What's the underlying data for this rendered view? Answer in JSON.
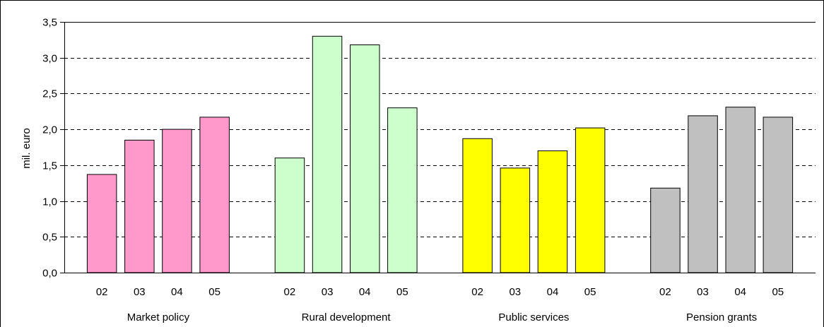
{
  "chart_data": {
    "type": "bar",
    "ylabel": "mil. euro",
    "xlabel": "",
    "ylim": [
      0,
      3.5
    ],
    "yticks": [
      "0,0",
      "0,5",
      "1,0",
      "1,5",
      "2,0",
      "2,5",
      "3,0",
      "3,5"
    ],
    "grid": true,
    "grid_style": "dashed",
    "legend": "none",
    "groups": [
      {
        "name": "Market policy",
        "color": "#ff99cc",
        "categories": [
          "02",
          "03",
          "04",
          "05"
        ],
        "values": [
          1.37,
          1.85,
          2.0,
          2.17
        ]
      },
      {
        "name": "Rural development",
        "color": "#ccffcc",
        "categories": [
          "02",
          "03",
          "04",
          "05"
        ],
        "values": [
          1.6,
          3.3,
          3.18,
          2.3
        ]
      },
      {
        "name": "Public services",
        "color": "#ffff00",
        "categories": [
          "02",
          "03",
          "04",
          "05"
        ],
        "values": [
          1.87,
          1.46,
          1.7,
          2.02
        ]
      },
      {
        "name": "Pension grants",
        "color": "#c0c0c0",
        "categories": [
          "02",
          "03",
          "04",
          "05"
        ],
        "values": [
          1.18,
          2.19,
          2.31,
          2.17
        ]
      }
    ]
  }
}
